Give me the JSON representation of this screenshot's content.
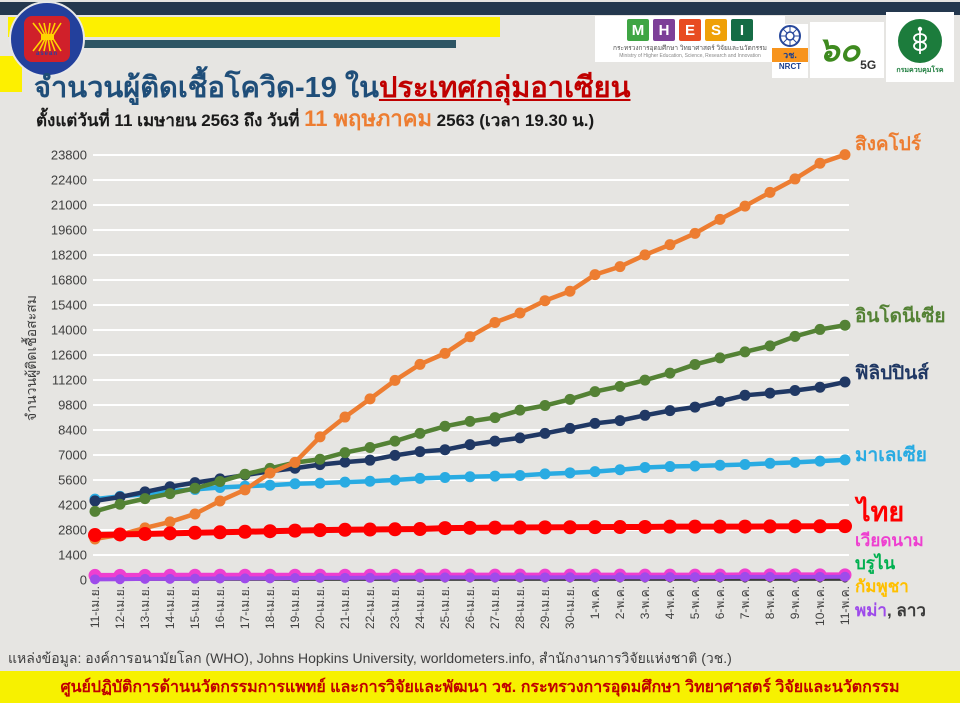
{
  "header": {
    "title_main": "จำนวนผู้ติดเชื้อโควิด-19 ใน",
    "title_highlight": "ประเทศกลุ่มอาเซียน",
    "subtitle_prefix": "ตั้งแต่วันที่ 11 เมษายน 2563 ถึง วันที่ ",
    "subtitle_highlight": "11 พฤษภาคม",
    "subtitle_suffix": " 2563 (เวลา 19.30 น.)"
  },
  "logos": {
    "asean_word": "asean",
    "mhesi": {
      "letters": [
        "M",
        "H",
        "E",
        "S",
        "I"
      ],
      "letter_colors": [
        "#3fa544",
        "#7d3f98",
        "#e84c22",
        "#efa008",
        "#156c45"
      ],
      "line1": "กระทรวงการอุดมศึกษา วิทยาศาสตร์ วิจัยและนวัตกรรม",
      "line2": "Ministry of Higher Education, Science, Research and Innovation"
    },
    "nrct": {
      "thai": "วช.",
      "en": "NRCT"
    },
    "anniversary": {
      "number": "๖๐",
      "suffix": "5G"
    },
    "ddc": {
      "name": "กรมควบคุมโรค"
    }
  },
  "chart_data": {
    "type": "line",
    "ylabel": "จำนวนผู้ติดเชื้อสะสม",
    "ylim": [
      0,
      23800
    ],
    "ytick_step": 1400,
    "grid": true,
    "legend_position": "right-of-lines",
    "categories": [
      "11-เม.ย.",
      "12-เม.ย.",
      "13-เม.ย.",
      "14-เม.ย.",
      "15-เม.ย.",
      "16-เม.ย.",
      "17-เม.ย.",
      "18-เม.ย.",
      "19-เม.ย.",
      "20-เม.ย.",
      "21-เม.ย.",
      "22-เม.ย.",
      "23-เม.ย.",
      "24-เม.ย.",
      "25-เม.ย.",
      "26-เม.ย.",
      "27-เม.ย.",
      "28-เม.ย.",
      "29-เม.ย.",
      "30-เม.ย.",
      "1-พ.ค.",
      "2-พ.ค.",
      "3-พ.ค.",
      "4-พ.ค.",
      "5-พ.ค.",
      "6-พ.ค.",
      "7-พ.ค.",
      "8-พ.ค.",
      "9-พ.ค.",
      "10-พ.ค.",
      "11-พ.ค."
    ],
    "series": [
      {
        "name": "สิงคโปร์",
        "color": "#ed7d31",
        "values": [
          2299,
          2532,
          2918,
          3252,
          3699,
          4427,
          5050,
          5992,
          6588,
          8014,
          9125,
          10141,
          11178,
          12075,
          12693,
          13624,
          14423,
          14951,
          15641,
          16169,
          17101,
          17548,
          18205,
          18778,
          19410,
          20198,
          20939,
          21707,
          22460,
          23336,
          23822
        ]
      },
      {
        "name": "อินโดนีเซีย",
        "color": "#548235",
        "values": [
          3842,
          4241,
          4557,
          4839,
          5136,
          5516,
          5923,
          6248,
          6575,
          6760,
          7135,
          7418,
          7775,
          8211,
          8607,
          8882,
          9096,
          9511,
          9771,
          10118,
          10551,
          10843,
          11192,
          11587,
          12071,
          12438,
          12776,
          13112,
          13645,
          14032,
          14265
        ]
      },
      {
        "name": "ฟิลิปปินส์",
        "color": "#203864",
        "values": [
          4428,
          4648,
          4932,
          5223,
          5453,
          5660,
          5878,
          6087,
          6259,
          6459,
          6599,
          6710,
          6981,
          7192,
          7294,
          7579,
          7777,
          7958,
          8212,
          8488,
          8772,
          8928,
          9223,
          9485,
          9684,
          10004,
          10343,
          10463,
          10610,
          10794,
          11086
        ]
      },
      {
        "name": "มาเลเซีย",
        "color": "#29abe2",
        "values": [
          4530,
          4683,
          4817,
          4987,
          5072,
          5182,
          5251,
          5305,
          5389,
          5425,
          5482,
          5532,
          5603,
          5691,
          5742,
          5780,
          5820,
          5851,
          5945,
          6002,
          6071,
          6176,
          6298,
          6353,
          6383,
          6428,
          6467,
          6535,
          6589,
          6656,
          6726
        ]
      },
      {
        "name": "ไทย",
        "color": "#fe0000",
        "values": [
          2518,
          2551,
          2579,
          2613,
          2643,
          2672,
          2700,
          2733,
          2765,
          2792,
          2811,
          2826,
          2839,
          2854,
          2907,
          2922,
          2931,
          2938,
          2947,
          2954,
          2960,
          2966,
          2969,
          2987,
          2988,
          2989,
          2992,
          3000,
          3004,
          3009,
          3015
        ]
      },
      {
        "name": "เวียดนาม",
        "color": "#ee3fd0",
        "values": [
          257,
          258,
          262,
          265,
          267,
          268,
          268,
          268,
          268,
          268,
          268,
          268,
          268,
          268,
          270,
          270,
          270,
          270,
          270,
          270,
          270,
          270,
          271,
          271,
          271,
          271,
          288,
          288,
          288,
          288,
          288
        ]
      },
      {
        "name": "บรูไน",
        "color": "#00b050",
        "values": [
          136,
          136,
          136,
          136,
          136,
          136,
          136,
          137,
          138,
          138,
          138,
          138,
          138,
          138,
          138,
          138,
          138,
          138,
          139,
          139,
          139,
          139,
          140,
          141,
          141,
          141,
          141,
          141,
          141,
          141,
          141
        ]
      },
      {
        "name": "กัมพูชา",
        "color": "#ffc000",
        "values": [
          120,
          122,
          122,
          122,
          122,
          122,
          122,
          122,
          122,
          122,
          122,
          122,
          122,
          122,
          122,
          122,
          122,
          122,
          122,
          122,
          122,
          122,
          122,
          122,
          122,
          122,
          122,
          122,
          122,
          122,
          122
        ]
      },
      {
        "name": "พม่า",
        "color": "#9e4bea",
        "values": [
          38,
          41,
          62,
          63,
          74,
          85,
          88,
          94,
          111,
          119,
          121,
          123,
          139,
          144,
          146,
          146,
          146,
          150,
          150,
          151,
          151,
          151,
          155,
          161,
          161,
          164,
          176,
          176,
          177,
          178,
          180
        ]
      },
      {
        "name": "ลาว",
        "color": "#3b3b3b",
        "values": [
          16,
          16,
          19,
          19,
          19,
          19,
          19,
          19,
          19,
          19,
          19,
          19,
          19,
          19,
          19,
          19,
          19,
          19,
          19,
          19,
          19,
          19,
          19,
          19,
          19,
          19,
          19,
          19,
          19,
          19,
          19
        ]
      }
    ]
  },
  "footer": {
    "source": "แหล่งข้อมูล: องค์การอนามัยโลก (WHO), Johns Hopkins University, worldometers.info, สำนักงานการวิจัยแห่งชาติ (วช.)",
    "banner": "ศูนย์ปฏิบัติการด้านนวัตกรรมการแพทย์ และการวิจัยและพัฒนา  วช.   กระทรวงการอุดมศึกษา วิทยาศาสตร์ วิจัยและนวัตกรรม"
  }
}
